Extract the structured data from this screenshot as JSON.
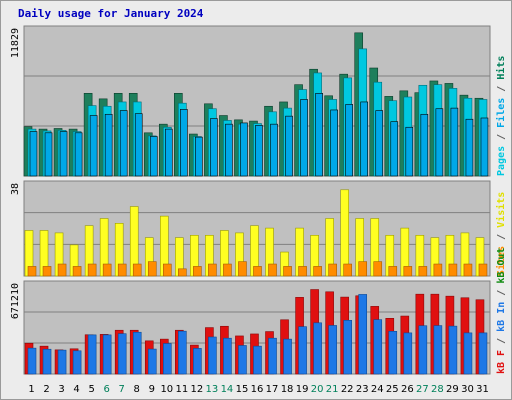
{
  "title": "Daily usage for January 2024",
  "colors": {
    "hits": "#1e7f5c",
    "files": "#00c8e0",
    "pages": "#00a8e8",
    "visits": "#ffff22",
    "sites": "#ff8c00",
    "kbout": "#0f8a0f",
    "kbf": "#e01010",
    "kbin": "#1e78e6",
    "panel_bg": "#c0c0c0",
    "grid": "#808080",
    "weekend": "#00805a"
  },
  "legend": {
    "top": [
      {
        "text": "Pages",
        "color": "#00c8e0"
      },
      {
        "text": " / ",
        "color": "#606060"
      },
      {
        "text": "Files",
        "color": "#00a8e8"
      },
      {
        "text": " / ",
        "color": "#606060"
      },
      {
        "text": "Hits",
        "color": "#00805a"
      }
    ],
    "mid": [
      {
        "text": "Sites",
        "color": "#ff8c00"
      },
      {
        "text": " / ",
        "color": "#606060"
      },
      {
        "text": "Visits",
        "color": "#e0e000"
      }
    ],
    "bot": [
      {
        "text": "kB F",
        "color": "#e01010"
      },
      {
        "text": " / ",
        "color": "#606060"
      },
      {
        "text": "kB In",
        "color": "#1e78e6"
      },
      {
        "text": " / ",
        "color": "#606060"
      },
      {
        "text": "kB Out",
        "color": "#0f8a0f"
      }
    ]
  },
  "chart_data": {
    "type": "bar",
    "title": "Daily usage for January 2024",
    "categories": [
      "1",
      "2",
      "3",
      "4",
      "5",
      "6",
      "7",
      "8",
      "9",
      "10",
      "11",
      "12",
      "13",
      "14",
      "15",
      "16",
      "17",
      "18",
      "19",
      "20",
      "21",
      "22",
      "23",
      "24",
      "25",
      "26",
      "27",
      "28",
      "29",
      "30",
      "31"
    ],
    "weekend_days": [
      "6",
      "7",
      "13",
      "14",
      "20",
      "21",
      "27",
      "28"
    ],
    "panels": [
      {
        "name": "hits-files-pages",
        "ymax_label": "11829",
        "ylim": [
          0,
          11829
        ],
        "series": [
          {
            "name": "Hits",
            "values": [
              4000,
              3800,
              3850,
              3800,
              6700,
              6250,
              6700,
              6700,
              3500,
              4200,
              6700,
              3400,
              5850,
              4900,
              4550,
              4450,
              5650,
              6000,
              7400,
              8650,
              6500,
              8250,
              11600,
              8750,
              6450,
              6900,
              6750,
              7700,
              7500,
              6550,
              6300
            ]
          },
          {
            "name": "Files",
            "values": [
              3800,
              3650,
              3700,
              3600,
              5700,
              5650,
              6000,
              6000,
              3250,
              3950,
              5900,
              3200,
              5450,
              4500,
              4200,
              4250,
              5200,
              5500,
              7000,
              8350,
              6200,
              7950,
              10300,
              7600,
              6100,
              6400,
              7350,
              7400,
              7100,
              6300,
              6200
            ]
          },
          {
            "name": "Pages",
            "values": [
              3600,
              3500,
              3600,
              3500,
              4900,
              5000,
              5300,
              5050,
              3200,
              3800,
              5400,
              3150,
              4650,
              4200,
              4300,
              4100,
              4200,
              4850,
              6200,
              6700,
              5350,
              5800,
              6000,
              5300,
              4400,
              3950,
              5000,
              5450,
              5500,
              4600,
              4700
            ]
          }
        ]
      },
      {
        "name": "visits-sites",
        "ymax_label": "38",
        "ylim": [
          0,
          38
        ],
        "series": [
          {
            "name": "Visits",
            "values": [
              19,
              19,
              18,
              13,
              21,
              24,
              22,
              29,
              16,
              25,
              16,
              17,
              17,
              19,
              18,
              21,
              20,
              10,
              20,
              17,
              24,
              36,
              24,
              24,
              17,
              20,
              17,
              16,
              17,
              18,
              16
            ]
          },
          {
            "name": "Sites",
            "values": [
              4,
              4,
              5,
              4,
              5,
              5,
              5,
              5,
              6,
              5,
              3,
              4,
              5,
              5,
              6,
              4,
              5,
              4,
              4,
              4,
              5,
              5,
              6,
              6,
              4,
              4,
              4,
              5,
              5,
              5,
              5
            ]
          }
        ]
      },
      {
        "name": "kbf-kbin-kbout",
        "ymax_label": "671210",
        "ylim": [
          0,
          671210
        ],
        "series": [
          {
            "name": "kB F",
            "values": [
              232000,
              210000,
              182000,
              190000,
              296000,
              299000,
              330000,
              330000,
              250000,
              263000,
              330000,
              218000,
              350000,
              360000,
              287000,
              302000,
              320000,
              409000,
              578000,
              637000,
              620000,
              580000,
              590000,
              510000,
              420000,
              437000,
              602000,
              602000,
              587000,
              575000,
              560000
            ]
          },
          {
            "name": "kB In",
            "values": [
              195000,
              187000,
              180000,
              175000,
              295000,
              295000,
              304000,
              315000,
              188000,
              230000,
              323000,
              193000,
              279000,
              270000,
              215000,
              210000,
              270000,
              263000,
              357000,
              386000,
              366000,
              405000,
              600000,
              410000,
              322000,
              310000,
              364000,
              365000,
              361000,
              310000,
              310000
            ]
          }
        ]
      }
    ]
  }
}
